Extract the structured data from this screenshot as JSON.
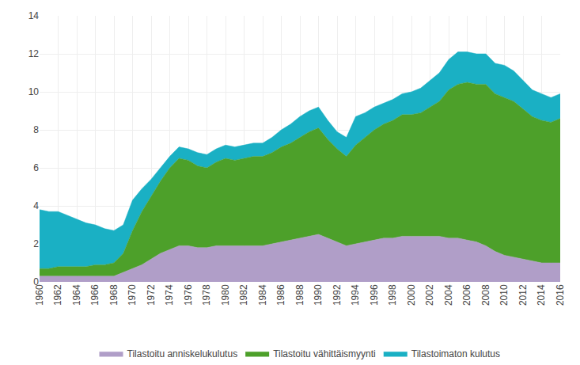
{
  "chart_data": {
    "type": "area",
    "stacked": true,
    "x": [
      1960,
      1961,
      1962,
      1963,
      1964,
      1965,
      1966,
      1967,
      1968,
      1969,
      1970,
      1971,
      1972,
      1973,
      1974,
      1975,
      1976,
      1977,
      1978,
      1979,
      1980,
      1981,
      1982,
      1983,
      1984,
      1985,
      1986,
      1987,
      1988,
      1989,
      1990,
      1991,
      1992,
      1993,
      1994,
      1995,
      1996,
      1997,
      1998,
      1999,
      2000,
      2001,
      2002,
      2003,
      2004,
      2005,
      2006,
      2007,
      2008,
      2009,
      2010,
      2011,
      2012,
      2013,
      2014,
      2015,
      2016
    ],
    "series": [
      {
        "name": "Tilastoitu anniskelukulutus",
        "color": "#b09ec8",
        "values": [
          0.3,
          0.3,
          0.3,
          0.3,
          0.3,
          0.3,
          0.3,
          0.3,
          0.3,
          0.5,
          0.7,
          0.9,
          1.2,
          1.5,
          1.7,
          1.9,
          1.9,
          1.8,
          1.8,
          1.9,
          1.9,
          1.9,
          1.9,
          1.9,
          1.9,
          2.0,
          2.1,
          2.2,
          2.3,
          2.4,
          2.5,
          2.3,
          2.1,
          1.9,
          2.0,
          2.1,
          2.2,
          2.3,
          2.3,
          2.4,
          2.4,
          2.4,
          2.4,
          2.4,
          2.3,
          2.3,
          2.2,
          2.1,
          1.9,
          1.6,
          1.4,
          1.3,
          1.2,
          1.1,
          1.0,
          1.0,
          1.0
        ]
      },
      {
        "name": "Tilastoitu vähittäismyynti",
        "color": "#4da02a",
        "values": [
          0.4,
          0.4,
          0.5,
          0.5,
          0.5,
          0.5,
          0.6,
          0.6,
          0.7,
          1.0,
          2.0,
          2.8,
          3.3,
          3.8,
          4.3,
          4.6,
          4.5,
          4.3,
          4.2,
          4.4,
          4.6,
          4.5,
          4.6,
          4.7,
          4.7,
          4.8,
          5.0,
          5.1,
          5.3,
          5.5,
          5.6,
          5.2,
          4.9,
          4.7,
          5.2,
          5.5,
          5.8,
          6.0,
          6.2,
          6.4,
          6.4,
          6.5,
          6.8,
          7.1,
          7.8,
          8.1,
          8.3,
          8.3,
          8.5,
          8.3,
          8.3,
          8.2,
          7.9,
          7.6,
          7.5,
          7.4,
          7.6
        ]
      },
      {
        "name": "Tilastoimaton kulutus",
        "color": "#1ab0c4",
        "values": [
          3.1,
          3.0,
          2.9,
          2.7,
          2.5,
          2.3,
          2.1,
          1.9,
          1.7,
          1.5,
          1.6,
          1.2,
          0.9,
          0.7,
          0.6,
          0.6,
          0.6,
          0.7,
          0.7,
          0.7,
          0.7,
          0.7,
          0.7,
          0.7,
          0.7,
          0.8,
          0.9,
          1.0,
          1.1,
          1.1,
          1.1,
          1.0,
          0.9,
          1.0,
          1.5,
          1.3,
          1.2,
          1.1,
          1.1,
          1.1,
          1.2,
          1.3,
          1.4,
          1.5,
          1.6,
          1.7,
          1.6,
          1.6,
          1.6,
          1.6,
          1.7,
          1.6,
          1.5,
          1.4,
          1.4,
          1.3,
          1.3
        ]
      }
    ],
    "xlim": [
      1960,
      2016
    ],
    "xticks": [
      1960,
      1962,
      1964,
      1966,
      1968,
      1970,
      1972,
      1974,
      1976,
      1978,
      1980,
      1982,
      1984,
      1986,
      1988,
      1990,
      1992,
      1994,
      1996,
      1998,
      2000,
      2002,
      2004,
      2006,
      2008,
      2010,
      2012,
      2014,
      2016
    ],
    "ylim": [
      0,
      14
    ],
    "yticks": [
      0,
      2,
      4,
      6,
      8,
      10,
      12,
      14
    ],
    "grid": true,
    "legend": "bottom"
  }
}
